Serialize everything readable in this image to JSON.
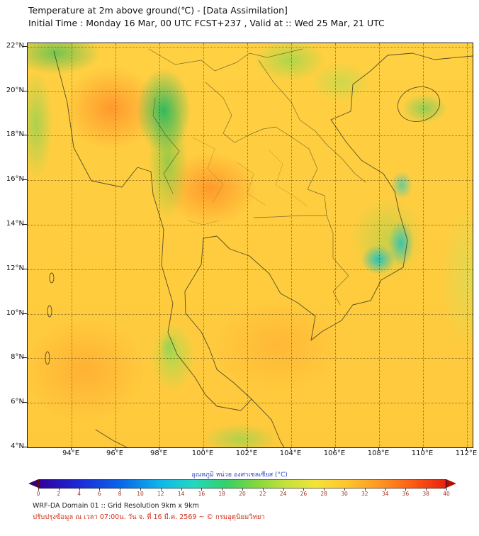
{
  "header": {
    "title": "Temperature at 2m above ground(℃) - [Data Assimilation]",
    "subtitle": "Initial Time : Monday 16 Mar, 00 UTC FCST+237 , Valid at :: Wed 25 Mar, 21 UTC"
  },
  "map": {
    "y_ticks": [
      "22°N",
      "20°N",
      "18°N",
      "16°N",
      "14°N",
      "12°N",
      "10°N",
      "8°N",
      "6°N",
      "4°N"
    ],
    "x_ticks": [
      "94°E",
      "96°E",
      "98°E",
      "100°E",
      "102°E",
      "104°E",
      "106°E",
      "108°E",
      "110°E",
      "112°E"
    ],
    "region": "Thailand / Indochina domain",
    "field": "2m temperature shaded, mostly 28-34 °C (yellow-orange) with cooler green/teal patches 20-26 °C over highlands and Vietnam coast"
  },
  "colorbar": {
    "label": "อุณหภูมิ หน่วย องศาเซลเซียส (°C)",
    "ticks": [
      "0",
      "2",
      "4",
      "6",
      "8",
      "10",
      "12",
      "14",
      "16",
      "18",
      "20",
      "22",
      "24",
      "26",
      "28",
      "30",
      "32",
      "34",
      "36",
      "38",
      "40"
    ],
    "min": 0,
    "max": 40,
    "label_color": "#2b48c8",
    "tick_color": "#a03322",
    "colormap": "jet-like: purple-blue-cyan-green-yellow-orange-red"
  },
  "footer": {
    "line1": "WRF-DA Domain 01 :: Grid Resolution 9km x 9km",
    "line2": "ปรับปรุงข้อมูล ณ เวลา 07:00น. วัน จ. ที่ 16 มี.ค. 2569 ~ © กรมอุตุนิยมวิทยา"
  }
}
